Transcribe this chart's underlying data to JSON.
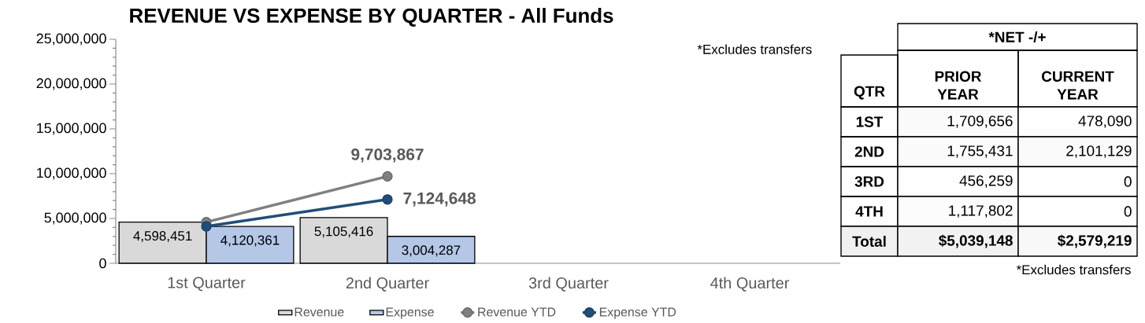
{
  "chart_data": [
    {
      "type": "bar",
      "title": "REVENUE VS EXPENSE BY QUARTER - All Funds",
      "categories": [
        "1st Quarter",
        "2nd Quarter",
        "3rd Quarter",
        "4th Quarter"
      ],
      "series": [
        {
          "name": "Revenue",
          "color": "#d9d9d9",
          "values": [
            4598451,
            5105416,
            null,
            null
          ],
          "value_labels": [
            "4,598,451",
            "5,105,416",
            null,
            null
          ]
        },
        {
          "name": "Expense",
          "color": "#b4c7e7",
          "values": [
            4120361,
            3004287,
            null,
            null
          ],
          "value_labels": [
            "4,120,361",
            "3,004,287",
            null,
            null
          ]
        },
        {
          "name": "Revenue YTD",
          "type": "line",
          "color": "#808080",
          "values": [
            4598451,
            9703867,
            null,
            null
          ],
          "value_labels": [
            null,
            "9,703,867",
            null,
            null
          ]
        },
        {
          "name": "Expense YTD",
          "type": "line",
          "color": "#1f4e79",
          "values": [
            4120361,
            7124648,
            null,
            null
          ],
          "value_labels": [
            null,
            "7,124,648",
            null,
            null
          ]
        }
      ],
      "ylim": [
        0,
        25000000
      ],
      "yticks": [
        0,
        {
          "value": 5000000,
          "label": "5,000,000"
        },
        {
          "value": 10000000,
          "label": "10,000,000"
        },
        {
          "value": 15000000,
          "label": "15,000,000"
        },
        {
          "value": 20000000,
          "label": "20,000,000"
        },
        {
          "value": 25000000,
          "label": "25,000,000"
        }
      ],
      "marker": "circle",
      "legend": "bottom",
      "annotations": [
        "*Excludes transfers"
      ]
    },
    {
      "type": "heatmap",
      "title": "*NET -/+",
      "ylabel": "QTR",
      "categories": [
        "PRIOR YEAR",
        "CURRENT YEAR"
      ],
      "y_categories": [
        "1ST",
        "2ND",
        "3RD",
        "4TH",
        "Total"
      ],
      "cells": [
        [
          1709656,
          478090
        ],
        [
          1755431,
          2101129
        ],
        [
          456259,
          0
        ],
        [
          1117802,
          0
        ],
        [
          5039148,
          2579219
        ]
      ],
      "cell_labels": [
        [
          "1,709,656",
          "478,090"
        ],
        [
          "1,755,431",
          "2,101,129"
        ],
        [
          "456,259",
          "0"
        ],
        [
          "1,117,802",
          "0"
        ],
        [
          "$5,039,148",
          "$2,579,219"
        ]
      ],
      "annotations": [
        "*Excludes transfers"
      ]
    }
  ]
}
